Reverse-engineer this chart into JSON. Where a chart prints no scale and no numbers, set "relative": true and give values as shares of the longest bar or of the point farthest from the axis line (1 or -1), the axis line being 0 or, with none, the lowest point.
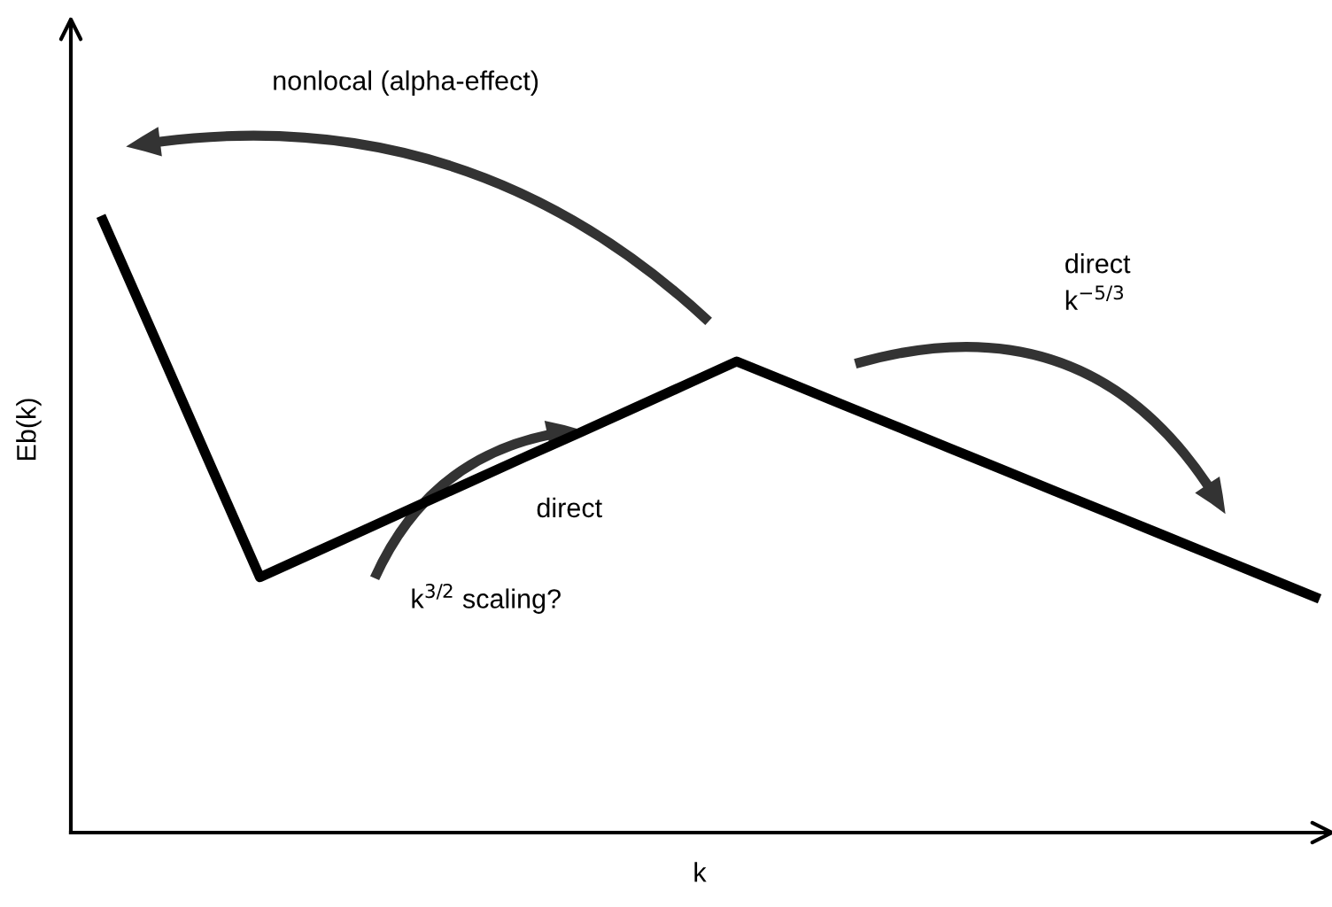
{
  "chart_data": {
    "type": "line",
    "relative": true,
    "xlabel": "k",
    "ylabel": "Eb(k)",
    "categories": [
      null,
      null,
      null,
      null,
      null,
      null,
      null,
      null,
      null,
      null,
      null,
      null,
      null,
      null,
      null,
      null,
      null,
      null,
      null,
      null,
      null,
      null,
      null,
      null
    ],
    "series": [
      {
        "color": "#000000",
        "values": [
          1,
          0.805,
          0.609,
          0.414,
          0.453,
          0.492,
          0.531,
          0.57,
          0.609,
          0.647,
          0.686,
          0.725,
          0.764,
          0.729,
          0.694,
          0.659,
          0.624,
          0.589,
          0.554,
          0.519,
          0.484,
          0.449,
          0.414,
          0.379
        ]
      }
    ],
    "marker": "none",
    "line_style": "solid",
    "grid": false,
    "annotations": [
      "nonlocal (alpha-effect)",
      "direct",
      "k$^{3/2}$ scaling?",
      "direct\nk$^{−5/3}$"
    ]
  }
}
